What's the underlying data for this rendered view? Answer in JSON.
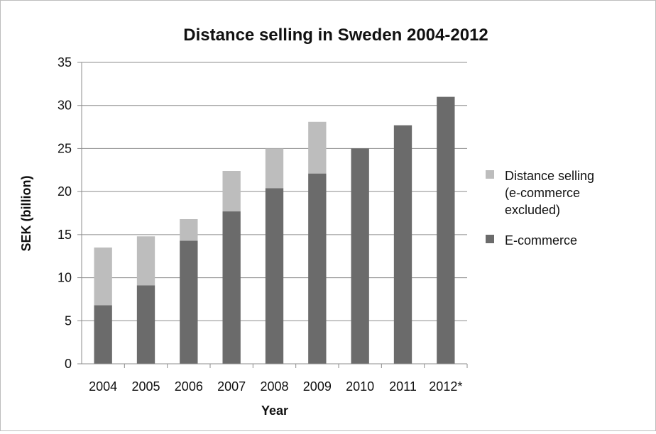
{
  "chart_data": {
    "type": "bar",
    "stacked": true,
    "title": "Distance selling in Sweden 2004-2012",
    "xlabel": "Year",
    "ylabel": "SEK (billion)",
    "ylim": [
      0,
      35
    ],
    "yticks": [
      0,
      5,
      10,
      15,
      20,
      25,
      30,
      35
    ],
    "grid": true,
    "legend_position": "right",
    "categories": [
      "2004",
      "2005",
      "2006",
      "2007",
      "2008",
      "2009",
      "2010",
      "2011",
      "2012*"
    ],
    "series": [
      {
        "name": "E-commerce",
        "color": "#6b6b6b",
        "values": [
          6.8,
          9.1,
          14.3,
          17.7,
          20.4,
          22.1,
          25.0,
          27.7,
          31.0
        ]
      },
      {
        "name": "Distance selling (e-commerce excluded)",
        "legend_lines": [
          "Distance selling",
          "(e-commerce",
          "excluded)"
        ],
        "color": "#bdbdbd",
        "values": [
          6.7,
          5.7,
          2.5,
          4.7,
          4.6,
          6.0,
          0,
          0,
          0
        ]
      }
    ]
  }
}
